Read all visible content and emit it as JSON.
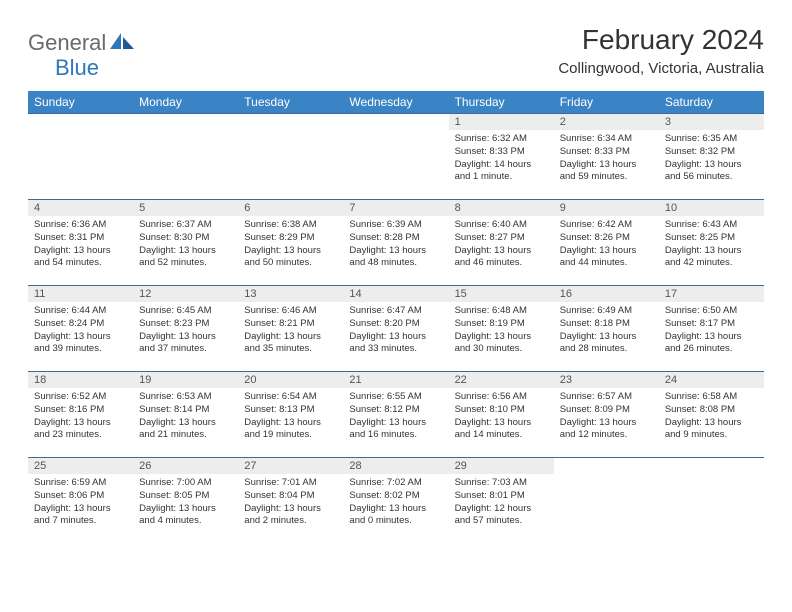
{
  "brand": {
    "general": "General",
    "blue": "Blue"
  },
  "title": "February 2024",
  "location": "Collingwood, Victoria, Australia",
  "colors": {
    "header_bg": "#3a83c5",
    "header_text": "#ffffff",
    "daynum_bg": "#ededed",
    "daynum_text": "#555555",
    "body_text": "#333333",
    "rule": "#3a6a9a",
    "logo_gray": "#6a6a6a",
    "logo_blue": "#2f77bb"
  },
  "weekdays": [
    "Sunday",
    "Monday",
    "Tuesday",
    "Wednesday",
    "Thursday",
    "Friday",
    "Saturday"
  ],
  "weeks": [
    [
      {
        "n": "",
        "sr": "",
        "ss": "",
        "dl": ""
      },
      {
        "n": "",
        "sr": "",
        "ss": "",
        "dl": ""
      },
      {
        "n": "",
        "sr": "",
        "ss": "",
        "dl": ""
      },
      {
        "n": "",
        "sr": "",
        "ss": "",
        "dl": ""
      },
      {
        "n": "1",
        "sr": "Sunrise: 6:32 AM",
        "ss": "Sunset: 8:33 PM",
        "dl": "Daylight: 14 hours and 1 minute."
      },
      {
        "n": "2",
        "sr": "Sunrise: 6:34 AM",
        "ss": "Sunset: 8:33 PM",
        "dl": "Daylight: 13 hours and 59 minutes."
      },
      {
        "n": "3",
        "sr": "Sunrise: 6:35 AM",
        "ss": "Sunset: 8:32 PM",
        "dl": "Daylight: 13 hours and 56 minutes."
      }
    ],
    [
      {
        "n": "4",
        "sr": "Sunrise: 6:36 AM",
        "ss": "Sunset: 8:31 PM",
        "dl": "Daylight: 13 hours and 54 minutes."
      },
      {
        "n": "5",
        "sr": "Sunrise: 6:37 AM",
        "ss": "Sunset: 8:30 PM",
        "dl": "Daylight: 13 hours and 52 minutes."
      },
      {
        "n": "6",
        "sr": "Sunrise: 6:38 AM",
        "ss": "Sunset: 8:29 PM",
        "dl": "Daylight: 13 hours and 50 minutes."
      },
      {
        "n": "7",
        "sr": "Sunrise: 6:39 AM",
        "ss": "Sunset: 8:28 PM",
        "dl": "Daylight: 13 hours and 48 minutes."
      },
      {
        "n": "8",
        "sr": "Sunrise: 6:40 AM",
        "ss": "Sunset: 8:27 PM",
        "dl": "Daylight: 13 hours and 46 minutes."
      },
      {
        "n": "9",
        "sr": "Sunrise: 6:42 AM",
        "ss": "Sunset: 8:26 PM",
        "dl": "Daylight: 13 hours and 44 minutes."
      },
      {
        "n": "10",
        "sr": "Sunrise: 6:43 AM",
        "ss": "Sunset: 8:25 PM",
        "dl": "Daylight: 13 hours and 42 minutes."
      }
    ],
    [
      {
        "n": "11",
        "sr": "Sunrise: 6:44 AM",
        "ss": "Sunset: 8:24 PM",
        "dl": "Daylight: 13 hours and 39 minutes."
      },
      {
        "n": "12",
        "sr": "Sunrise: 6:45 AM",
        "ss": "Sunset: 8:23 PM",
        "dl": "Daylight: 13 hours and 37 minutes."
      },
      {
        "n": "13",
        "sr": "Sunrise: 6:46 AM",
        "ss": "Sunset: 8:21 PM",
        "dl": "Daylight: 13 hours and 35 minutes."
      },
      {
        "n": "14",
        "sr": "Sunrise: 6:47 AM",
        "ss": "Sunset: 8:20 PM",
        "dl": "Daylight: 13 hours and 33 minutes."
      },
      {
        "n": "15",
        "sr": "Sunrise: 6:48 AM",
        "ss": "Sunset: 8:19 PM",
        "dl": "Daylight: 13 hours and 30 minutes."
      },
      {
        "n": "16",
        "sr": "Sunrise: 6:49 AM",
        "ss": "Sunset: 8:18 PM",
        "dl": "Daylight: 13 hours and 28 minutes."
      },
      {
        "n": "17",
        "sr": "Sunrise: 6:50 AM",
        "ss": "Sunset: 8:17 PM",
        "dl": "Daylight: 13 hours and 26 minutes."
      }
    ],
    [
      {
        "n": "18",
        "sr": "Sunrise: 6:52 AM",
        "ss": "Sunset: 8:16 PM",
        "dl": "Daylight: 13 hours and 23 minutes."
      },
      {
        "n": "19",
        "sr": "Sunrise: 6:53 AM",
        "ss": "Sunset: 8:14 PM",
        "dl": "Daylight: 13 hours and 21 minutes."
      },
      {
        "n": "20",
        "sr": "Sunrise: 6:54 AM",
        "ss": "Sunset: 8:13 PM",
        "dl": "Daylight: 13 hours and 19 minutes."
      },
      {
        "n": "21",
        "sr": "Sunrise: 6:55 AM",
        "ss": "Sunset: 8:12 PM",
        "dl": "Daylight: 13 hours and 16 minutes."
      },
      {
        "n": "22",
        "sr": "Sunrise: 6:56 AM",
        "ss": "Sunset: 8:10 PM",
        "dl": "Daylight: 13 hours and 14 minutes."
      },
      {
        "n": "23",
        "sr": "Sunrise: 6:57 AM",
        "ss": "Sunset: 8:09 PM",
        "dl": "Daylight: 13 hours and 12 minutes."
      },
      {
        "n": "24",
        "sr": "Sunrise: 6:58 AM",
        "ss": "Sunset: 8:08 PM",
        "dl": "Daylight: 13 hours and 9 minutes."
      }
    ],
    [
      {
        "n": "25",
        "sr": "Sunrise: 6:59 AM",
        "ss": "Sunset: 8:06 PM",
        "dl": "Daylight: 13 hours and 7 minutes."
      },
      {
        "n": "26",
        "sr": "Sunrise: 7:00 AM",
        "ss": "Sunset: 8:05 PM",
        "dl": "Daylight: 13 hours and 4 minutes."
      },
      {
        "n": "27",
        "sr": "Sunrise: 7:01 AM",
        "ss": "Sunset: 8:04 PM",
        "dl": "Daylight: 13 hours and 2 minutes."
      },
      {
        "n": "28",
        "sr": "Sunrise: 7:02 AM",
        "ss": "Sunset: 8:02 PM",
        "dl": "Daylight: 13 hours and 0 minutes."
      },
      {
        "n": "29",
        "sr": "Sunrise: 7:03 AM",
        "ss": "Sunset: 8:01 PM",
        "dl": "Daylight: 12 hours and 57 minutes."
      },
      {
        "n": "",
        "sr": "",
        "ss": "",
        "dl": ""
      },
      {
        "n": "",
        "sr": "",
        "ss": "",
        "dl": ""
      }
    ]
  ]
}
